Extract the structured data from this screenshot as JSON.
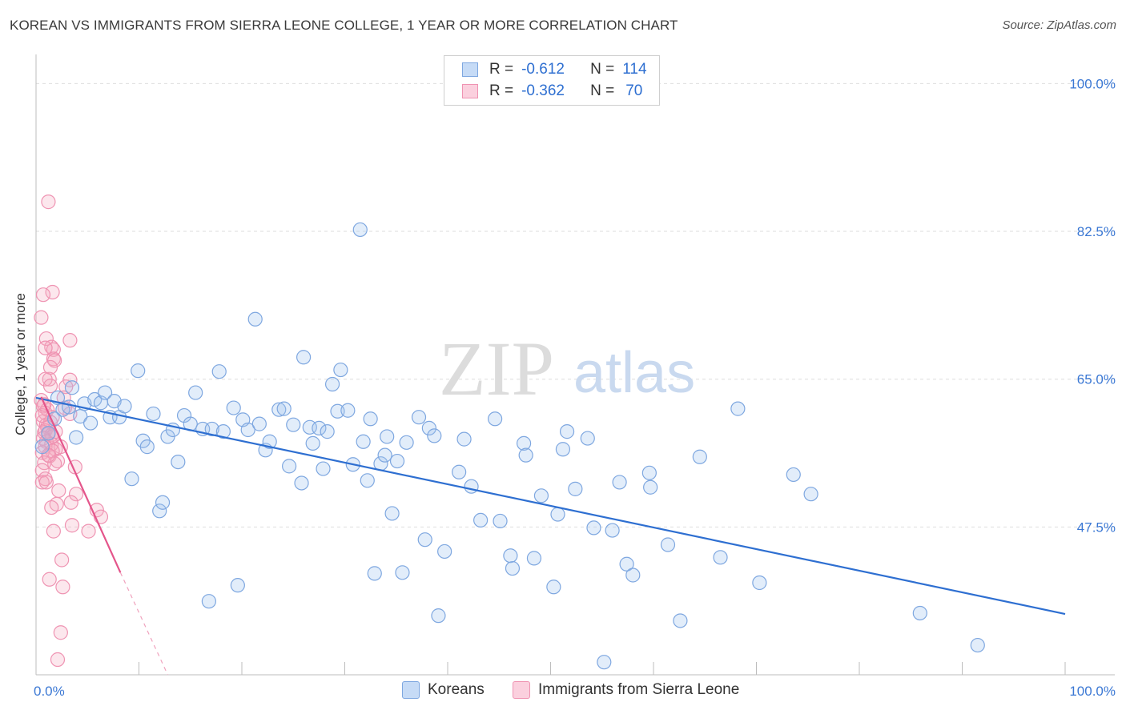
{
  "header": {
    "title": "KOREAN VS IMMIGRANTS FROM SIERRA LEONE COLLEGE, 1 YEAR OR MORE CORRELATION CHART",
    "source": "Source: ZipAtlas.com"
  },
  "watermark": {
    "part1": "ZIP",
    "part2": "atlas"
  },
  "legend": {
    "rows": [
      {
        "r_label": "R =",
        "r_value": "-0.612",
        "n_label": "N =",
        "n_value": "114",
        "color": "#9fc2ef"
      },
      {
        "r_label": "R =",
        "r_value": "-0.362",
        "n_label": "N =",
        "n_value": "70",
        "color": "#f5a9c0"
      }
    ]
  },
  "bottom_legend": [
    {
      "label": "Koreans",
      "color": "#9fc2ef"
    },
    {
      "label": "Immigrants from Sierra Leone",
      "color": "#f5a9c0"
    }
  ],
  "chart_data": {
    "type": "scatter",
    "title": "KOREAN VS IMMIGRANTS FROM SIERRA LEONE COLLEGE, 1 YEAR OR MORE CORRELATION CHART",
    "xlabel": "",
    "ylabel": "College, 1 year or more",
    "xlim": [
      0,
      100
    ],
    "ylim": [
      30.0,
      102.5
    ],
    "x_tick_labels": [
      "0.0%",
      "100.0%"
    ],
    "y_ticks": [
      47.5,
      65.0,
      82.5,
      100.0
    ],
    "y_tick_labels": [
      "47.5%",
      "65.0%",
      "82.5%",
      "100.0%"
    ],
    "grid": true,
    "colors": {
      "koreans": "#2e6fd1",
      "sierra_leone": "#e4558b",
      "tick_label": "#3b78d4"
    },
    "series": [
      {
        "name": "Koreans",
        "r": -0.612,
        "n": 114,
        "trend": {
          "x": [
            0.0,
            100.0
          ],
          "y": [
            62.8,
            37.2
          ]
        },
        "points": [
          [
            0.6,
            57.0
          ],
          [
            1.2,
            58.6
          ],
          [
            1.8,
            60.3
          ],
          [
            2.1,
            62.8
          ],
          [
            2.6,
            61.4
          ],
          [
            3.2,
            61.7
          ],
          [
            3.5,
            64.0
          ],
          [
            3.9,
            58.1
          ],
          [
            4.3,
            60.6
          ],
          [
            4.7,
            62.1
          ],
          [
            5.3,
            59.8
          ],
          [
            5.7,
            62.6
          ],
          [
            6.3,
            62.2
          ],
          [
            6.7,
            63.4
          ],
          [
            7.2,
            60.5
          ],
          [
            7.6,
            62.4
          ],
          [
            8.1,
            60.5
          ],
          [
            8.6,
            61.8
          ],
          [
            9.3,
            53.2
          ],
          [
            9.9,
            66.0
          ],
          [
            10.4,
            57.7
          ],
          [
            10.8,
            57.0
          ],
          [
            11.4,
            60.9
          ],
          [
            12.0,
            49.4
          ],
          [
            12.3,
            50.4
          ],
          [
            12.8,
            58.2
          ],
          [
            13.3,
            59.0
          ],
          [
            13.8,
            55.2
          ],
          [
            14.4,
            60.7
          ],
          [
            15.0,
            59.7
          ],
          [
            15.5,
            63.4
          ],
          [
            16.2,
            59.1
          ],
          [
            16.8,
            38.7
          ],
          [
            17.1,
            59.1
          ],
          [
            17.8,
            65.9
          ],
          [
            18.2,
            58.8
          ],
          [
            19.2,
            61.6
          ],
          [
            19.6,
            40.6
          ],
          [
            20.1,
            60.2
          ],
          [
            20.6,
            59.0
          ],
          [
            21.3,
            72.1
          ],
          [
            21.7,
            59.7
          ],
          [
            22.3,
            56.6
          ],
          [
            22.7,
            57.6
          ],
          [
            23.6,
            61.4
          ],
          [
            24.1,
            61.5
          ],
          [
            24.6,
            54.7
          ],
          [
            25.0,
            59.6
          ],
          [
            25.8,
            52.7
          ],
          [
            26.0,
            67.6
          ],
          [
            26.6,
            59.3
          ],
          [
            26.9,
            57.4
          ],
          [
            27.5,
            59.2
          ],
          [
            27.9,
            54.4
          ],
          [
            28.3,
            58.8
          ],
          [
            28.8,
            64.4
          ],
          [
            29.3,
            61.2
          ],
          [
            29.6,
            66.1
          ],
          [
            30.3,
            61.3
          ],
          [
            30.8,
            54.9
          ],
          [
            31.5,
            82.7
          ],
          [
            31.8,
            57.6
          ],
          [
            32.2,
            53.0
          ],
          [
            32.5,
            60.3
          ],
          [
            32.9,
            42.0
          ],
          [
            33.5,
            55.0
          ],
          [
            34.1,
            58.2
          ],
          [
            34.6,
            49.1
          ],
          [
            35.1,
            55.3
          ],
          [
            35.6,
            42.1
          ],
          [
            36.0,
            57.5
          ],
          [
            37.2,
            60.5
          ],
          [
            37.8,
            46.0
          ],
          [
            38.2,
            59.2
          ],
          [
            38.7,
            58.3
          ],
          [
            39.1,
            37.0
          ],
          [
            39.7,
            44.6
          ],
          [
            41.1,
            54.0
          ],
          [
            41.6,
            57.9
          ],
          [
            42.3,
            52.3
          ],
          [
            43.2,
            48.3
          ],
          [
            45.1,
            48.2
          ],
          [
            46.1,
            44.1
          ],
          [
            46.3,
            42.6
          ],
          [
            47.4,
            57.4
          ],
          [
            47.6,
            56.0
          ],
          [
            48.4,
            43.8
          ],
          [
            49.1,
            51.2
          ],
          [
            50.3,
            40.4
          ],
          [
            50.7,
            49.0
          ],
          [
            51.2,
            56.7
          ],
          [
            51.6,
            58.8
          ],
          [
            52.4,
            52.0
          ],
          [
            53.6,
            58.0
          ],
          [
            54.2,
            47.4
          ],
          [
            55.2,
            31.5
          ],
          [
            56.0,
            47.1
          ],
          [
            56.7,
            52.8
          ],
          [
            57.4,
            43.1
          ],
          [
            58.0,
            41.8
          ],
          [
            59.6,
            53.9
          ],
          [
            59.7,
            52.2
          ],
          [
            61.4,
            45.4
          ],
          [
            62.6,
            36.4
          ],
          [
            66.5,
            43.9
          ],
          [
            70.3,
            40.9
          ],
          [
            73.6,
            53.7
          ],
          [
            75.3,
            51.4
          ],
          [
            85.9,
            37.3
          ],
          [
            91.5,
            33.5
          ],
          [
            64.5,
            55.8
          ],
          [
            68.2,
            61.5
          ],
          [
            44.6,
            60.3
          ],
          [
            33.9,
            56.0
          ]
        ]
      },
      {
        "name": "Immigrants from Sierra Leone",
        "r": -0.362,
        "n": 70,
        "trend": {
          "x": [
            0.5,
            8.2
          ],
          "y": [
            62.9,
            42.1
          ]
        },
        "trend_extension": {
          "x": [
            8.2,
            12.8
          ],
          "y": [
            42.1,
            30.0
          ]
        },
        "points": [
          [
            1.2,
            86.0
          ],
          [
            1.6,
            75.3
          ],
          [
            0.7,
            75.0
          ],
          [
            0.5,
            72.3
          ],
          [
            1.0,
            69.8
          ],
          [
            3.3,
            69.6
          ],
          [
            1.5,
            68.8
          ],
          [
            1.7,
            68.5
          ],
          [
            0.9,
            68.7
          ],
          [
            1.7,
            67.4
          ],
          [
            1.8,
            67.2
          ],
          [
            1.3,
            65.0
          ],
          [
            0.9,
            65.0
          ],
          [
            3.3,
            64.9
          ],
          [
            2.9,
            64.1
          ],
          [
            1.4,
            64.2
          ],
          [
            0.5,
            62.5
          ],
          [
            0.7,
            61.8
          ],
          [
            1.1,
            61.4
          ],
          [
            2.8,
            61.6
          ],
          [
            3.3,
            60.9
          ],
          [
            0.9,
            61.0
          ],
          [
            1.6,
            60.5
          ],
          [
            0.7,
            60.0
          ],
          [
            1.0,
            59.6
          ],
          [
            1.4,
            59.9
          ],
          [
            1.1,
            59.3
          ],
          [
            0.9,
            58.9
          ],
          [
            1.2,
            58.5
          ],
          [
            0.8,
            58.7
          ],
          [
            1.5,
            58.4
          ],
          [
            1.6,
            58.2
          ],
          [
            0.7,
            58.0
          ],
          [
            1.0,
            57.6
          ],
          [
            1.5,
            57.3
          ],
          [
            0.9,
            57.0
          ],
          [
            2.4,
            57.0
          ],
          [
            1.9,
            56.7
          ],
          [
            1.6,
            56.5
          ],
          [
            0.6,
            56.3
          ],
          [
            1.3,
            55.9
          ],
          [
            2.1,
            55.3
          ],
          [
            1.8,
            55.0
          ],
          [
            0.8,
            55.1
          ],
          [
            3.8,
            54.6
          ],
          [
            0.6,
            54.2
          ],
          [
            0.9,
            53.2
          ],
          [
            0.6,
            52.8
          ],
          [
            1.0,
            52.8
          ],
          [
            2.2,
            51.8
          ],
          [
            3.9,
            51.4
          ],
          [
            2.0,
            50.2
          ],
          [
            3.4,
            50.4
          ],
          [
            1.5,
            49.8
          ],
          [
            5.9,
            49.5
          ],
          [
            6.3,
            48.7
          ],
          [
            3.5,
            47.7
          ],
          [
            1.7,
            47.0
          ],
          [
            5.1,
            47.0
          ],
          [
            2.5,
            43.6
          ],
          [
            1.3,
            41.3
          ],
          [
            2.6,
            40.4
          ],
          [
            2.4,
            35.0
          ],
          [
            2.1,
            31.8
          ],
          [
            0.6,
            60.7
          ],
          [
            1.9,
            58.8
          ],
          [
            1.2,
            56.0
          ],
          [
            2.7,
            62.8
          ],
          [
            0.8,
            62.0
          ],
          [
            1.4,
            66.4
          ]
        ]
      }
    ]
  }
}
